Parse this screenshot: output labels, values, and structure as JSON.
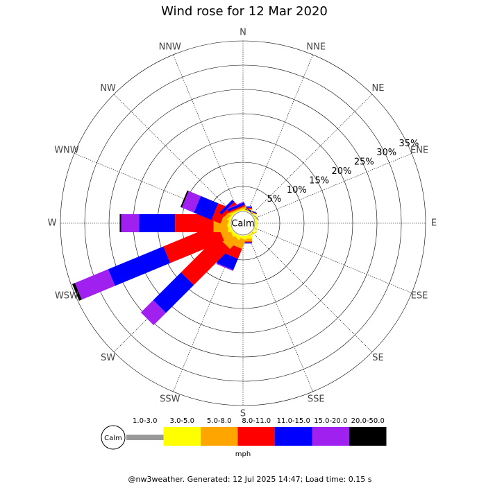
{
  "chart_data": {
    "type": "windrose",
    "title": "Wind rose for 12 Mar 2020",
    "categories": [
      "N",
      "NNE",
      "NE",
      "ENE",
      "E",
      "ESE",
      "SE",
      "SSE",
      "S",
      "SSW",
      "SW",
      "WSW",
      "W",
      "WNW",
      "NW",
      "NNW"
    ],
    "rlim": [
      0,
      35
    ],
    "rticks": [
      {
        "value": 5,
        "label": "5%"
      },
      {
        "value": 10,
        "label": "10%"
      },
      {
        "value": 15,
        "label": "15%"
      },
      {
        "value": 20,
        "label": "20%"
      },
      {
        "value": 25,
        "label": "25%"
      },
      {
        "value": 30,
        "label": "30%"
      },
      {
        "value": 35,
        "label": "35%"
      }
    ],
    "calm_label": "Calm",
    "unit_label": "mph",
    "footer": "@nw3weather. Generated: 12 Jul 2025 14:47; Load time: 0.15 s",
    "series": [
      {
        "name": "1.0-3.0",
        "color": "#999999",
        "values": [
          0,
          0,
          0,
          0,
          0,
          0,
          0,
          0,
          0,
          0,
          0,
          0,
          0,
          0,
          0,
          0
        ]
      },
      {
        "name": "3.0-5.0",
        "color": "#ffff00",
        "values": [
          0.2,
          0.2,
          0.1,
          0.1,
          0.2,
          0.1,
          0.1,
          0.2,
          0.6,
          0.4,
          0.5,
          0.4,
          0.5,
          0.3,
          0.3,
          0.2
        ]
      },
      {
        "name": "5.0-8.0",
        "color": "#ffa500",
        "values": [
          0.2,
          0,
          0,
          0,
          0,
          0,
          0,
          0.1,
          0.6,
          2.0,
          2.6,
          2.0,
          3.0,
          1.4,
          0.8,
          0.3
        ]
      },
      {
        "name": "8.0-11.0",
        "color": "#ff0000",
        "values": [
          0.2,
          0.1,
          0,
          0,
          0,
          0,
          0,
          0,
          0.2,
          2.2,
          10.5,
          12.0,
          7.9,
          2.0,
          0.7,
          0.3
        ]
      },
      {
        "name": "11.0-15.0",
        "color": "#0000ff",
        "values": [
          0.3,
          0.2,
          0.1,
          0,
          0,
          0,
          0,
          0,
          0.2,
          2.5,
          8.1,
          12.3,
          7.4,
          3.9,
          0.6,
          0.5
        ]
      },
      {
        "name": "15.0-20.0",
        "color": "#a020f0",
        "values": [
          0,
          0,
          0,
          0,
          0,
          0,
          0,
          0,
          0,
          0.2,
          3.6,
          7.4,
          3.7,
          2.7,
          0,
          0.2
        ]
      },
      {
        "name": "20.0-50.0",
        "color": "#000000",
        "values": [
          0,
          0,
          0,
          0,
          0,
          0,
          0,
          0,
          0,
          0,
          0,
          0.6,
          0.3,
          0.3,
          0,
          0
        ]
      }
    ]
  }
}
